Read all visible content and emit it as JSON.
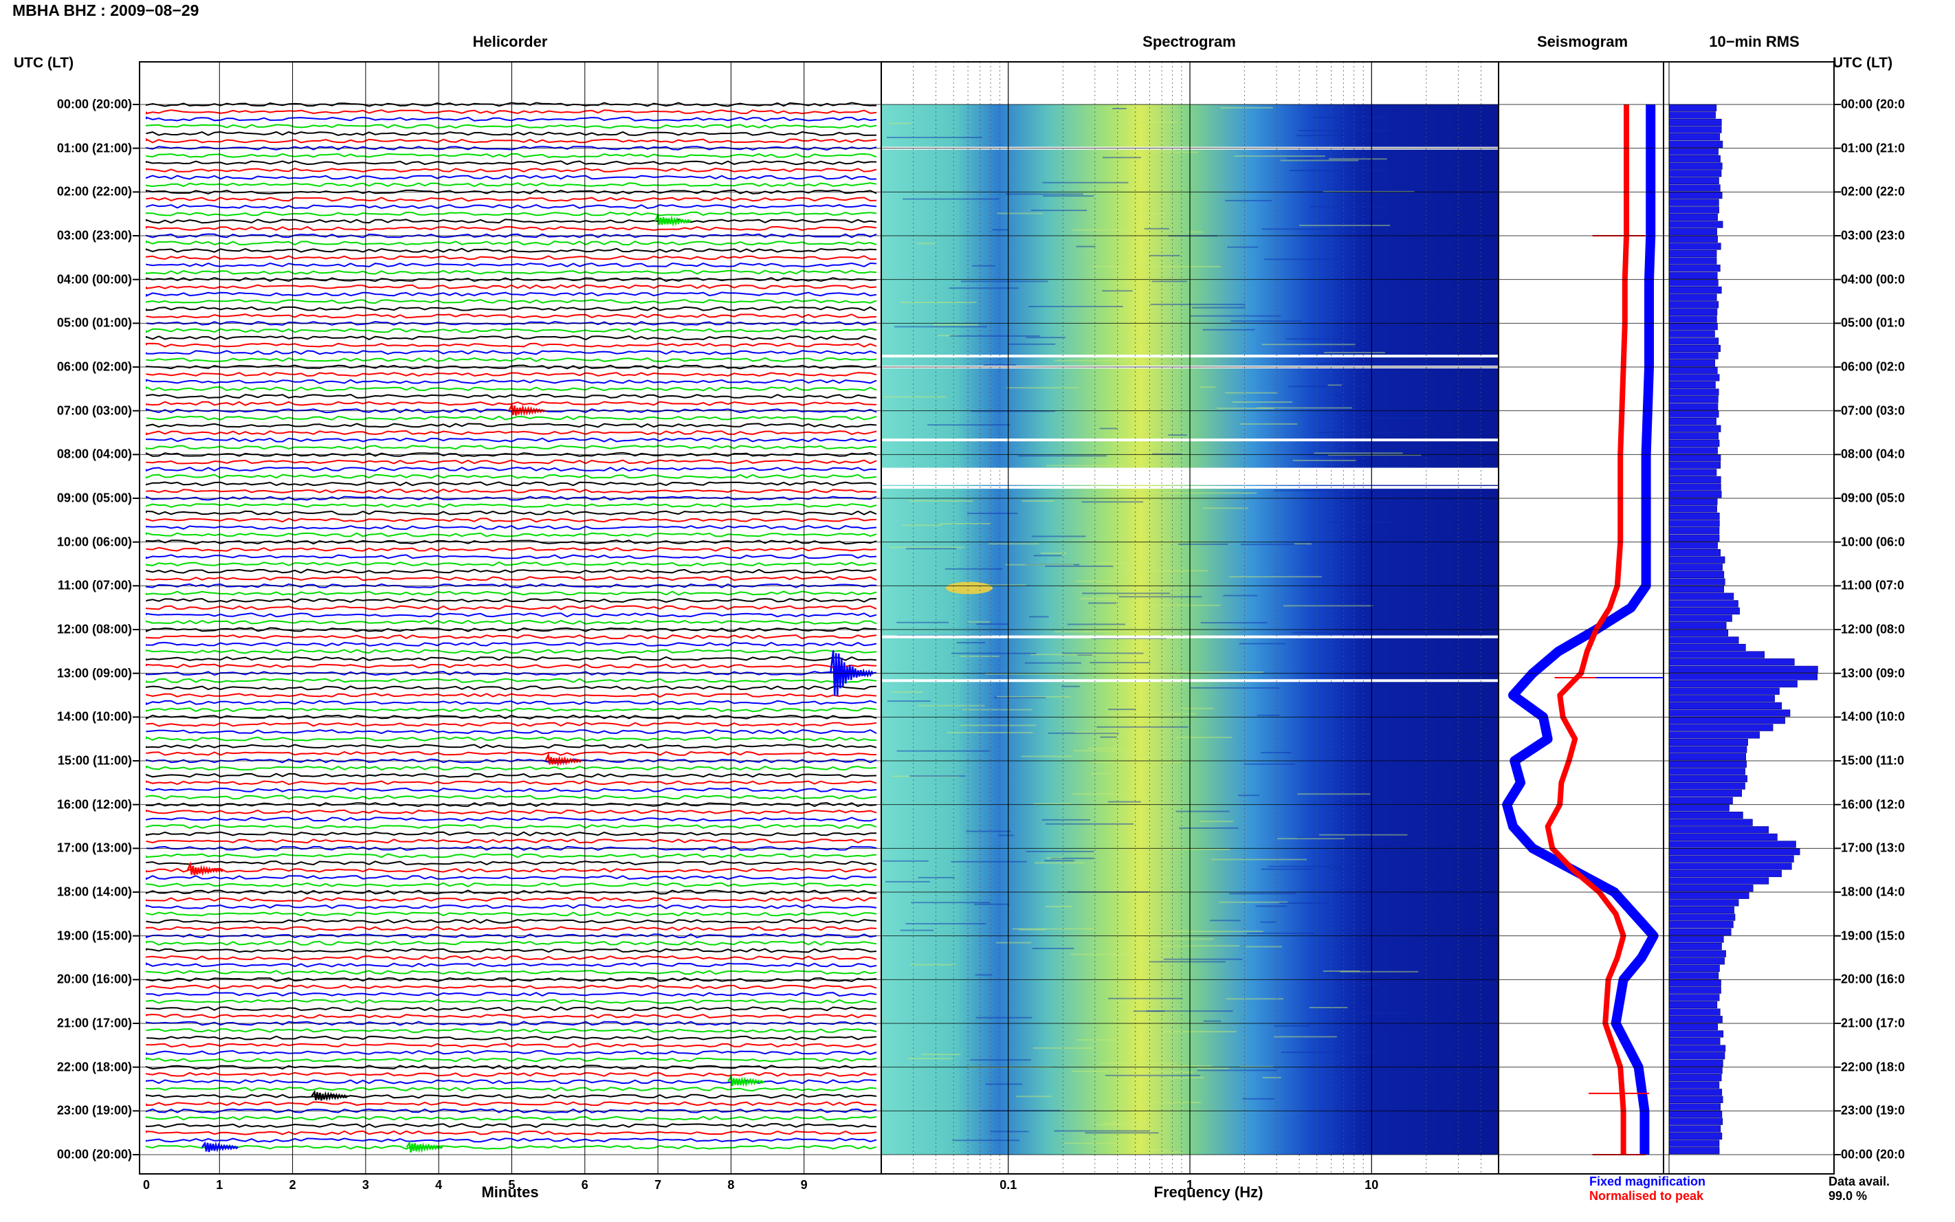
{
  "header": {
    "title": "MBHA BHZ : 2009−08−29"
  },
  "panels": {
    "helicorder": "Helicorder",
    "spectrogram": "Spectrogram",
    "seismogram": "Seismogram",
    "rms": "10−min RMS"
  },
  "axis": {
    "utc_label_left": "UTC (LT)",
    "utc_label_right": "UTC (LT)",
    "time_ticks": [
      "00:00 (20:00)",
      "01:00 (21:00)",
      "02:00 (22:00)",
      "03:00 (23:00)",
      "04:00 (00:00)",
      "05:00 (01:00)",
      "06:00 (02:00)",
      "07:00 (03:00)",
      "08:00 (04:00)",
      "09:00 (05:00)",
      "10:00 (06:00)",
      "11:00 (07:00)",
      "12:00 (08:00)",
      "13:00 (09:00)",
      "14:00 (10:00)",
      "15:00 (11:00)",
      "16:00 (12:00)",
      "17:00 (13:00)",
      "18:00 (14:00)",
      "19:00 (15:00)",
      "20:00 (16:00)",
      "21:00 (17:00)",
      "22:00 (18:00)",
      "23:00 (19:00)",
      "00:00 (20:00)"
    ],
    "right_ticks": [
      "00:00 (20:0",
      "01:00 (21:0",
      "02:00 (22:0",
      "03:00 (23:0",
      "04:00 (00:0",
      "05:00 (01:0",
      "06:00 (02:0",
      "07:00 (03:0",
      "08:00 (04:0",
      "09:00 (05:0",
      "10:00 (06:0",
      "11:00 (07:0",
      "12:00 (08:0",
      "13:00 (09:0",
      "14:00 (10:0",
      "15:00 (11:0",
      "16:00 (12:0",
      "17:00 (13:0",
      "18:00 (14:0",
      "19:00 (15:0",
      "20:00 (16:0",
      "21:00 (17:0",
      "22:00 (18:0",
      "23:00 (19:0",
      "00:00 (20:0"
    ],
    "minute_ticks": [
      "0",
      "1",
      "2",
      "3",
      "4",
      "5",
      "6",
      "7",
      "8",
      "9"
    ],
    "minutes_label": "Minutes",
    "freq_ticks": [
      "0.1",
      "1",
      "10"
    ],
    "freq_label": "Frequency (Hz)"
  },
  "legend": {
    "fixed": "Fixed magnification",
    "normalised": "Normalised to peak",
    "fixed_color": "#0000ff",
    "normalised_color": "#ff0000"
  },
  "availability": {
    "label": "Data avail.",
    "value": "99.0 %"
  },
  "colors": {
    "trace_cycle": [
      "#000000",
      "#ff0000",
      "#0000ff",
      "#00dd00"
    ]
  },
  "chart_data": [
    {
      "type": "line",
      "title": "Helicorder",
      "xlabel": "Minutes",
      "xlim": [
        0,
        10
      ],
      "rows": 144,
      "trace_colors": [
        "black",
        "red",
        "blue",
        "green"
      ],
      "events": [
        {
          "time": "13:00",
          "minute": 9.4,
          "color": "blue",
          "amplitude": "large"
        },
        {
          "time": "02:40",
          "minute": 7.0,
          "color": "green"
        },
        {
          "time": "07:00",
          "minute": 5.0,
          "color": "red"
        },
        {
          "time": "15:00",
          "minute": 5.5,
          "color": "red"
        },
        {
          "time": "17:30",
          "minute": 0.6,
          "color": "red"
        },
        {
          "time": "22:40",
          "minute": 2.3,
          "color": "black"
        },
        {
          "time": "22:20",
          "minute": 8.0,
          "color": "green"
        },
        {
          "time": "23:50",
          "minute": 0.8,
          "color": "blue"
        },
        {
          "time": "23:50",
          "minute": 3.6,
          "color": "green"
        }
      ]
    },
    {
      "type": "heatmap",
      "title": "Spectrogram",
      "xlabel": "Frequency (Hz)",
      "xscale": "log",
      "xlim": [
        0.02,
        50
      ],
      "ylabel": "UTC (LT)",
      "gaps_utc": [
        "01:00",
        "05:45",
        "06:00",
        "07:40",
        "08:20",
        "08:45",
        "12:10",
        "13:10"
      ]
    },
    {
      "type": "line",
      "title": "Seismogram",
      "series": [
        {
          "name": "Fixed magnification",
          "color": "blue",
          "x_time": [
            0,
            1,
            2,
            3,
            4,
            5,
            6,
            7,
            8,
            9,
            10,
            11,
            11.5,
            12,
            12.5,
            13,
            13.5,
            14,
            14.5,
            15,
            15.5,
            16,
            16.5,
            17,
            17.5,
            18,
            18.5,
            19,
            19.5,
            20,
            21,
            22,
            23,
            24
          ],
          "x": [
            0.96,
            0.96,
            0.96,
            0.96,
            0.95,
            0.95,
            0.95,
            0.94,
            0.93,
            0.93,
            0.93,
            0.93,
            0.83,
            0.6,
            0.35,
            0.18,
            0.05,
            0.25,
            0.28,
            0.06,
            0.1,
            0.01,
            0.05,
            0.18,
            0.45,
            0.72,
            0.85,
            0.98,
            0.9,
            0.78,
            0.73,
            0.88,
            0.92,
            0.92
          ]
        },
        {
          "name": "Normalised to peak",
          "color": "red",
          "x_time": [
            0,
            1,
            2,
            3,
            4,
            5,
            6,
            7,
            8,
            9,
            10,
            11,
            11.5,
            12,
            12.5,
            13,
            13.5,
            14,
            14.5,
            15,
            15.5,
            16,
            16.5,
            17,
            17.5,
            18,
            18.5,
            19,
            19.5,
            20,
            21,
            22,
            23,
            24
          ],
          "x": [
            0.8,
            0.8,
            0.8,
            0.8,
            0.79,
            0.79,
            0.78,
            0.77,
            0.76,
            0.76,
            0.76,
            0.74,
            0.69,
            0.6,
            0.54,
            0.5,
            0.36,
            0.38,
            0.46,
            0.42,
            0.37,
            0.36,
            0.28,
            0.31,
            0.45,
            0.62,
            0.73,
            0.78,
            0.74,
            0.68,
            0.66,
            0.76,
            0.78,
            0.78
          ]
        }
      ]
    },
    {
      "type": "bar",
      "title": "10−min RMS",
      "orientation": "horizontal",
      "interval_minutes": 10,
      "profile_hours": [
        0,
        2,
        4,
        6,
        8,
        10,
        11,
        11.5,
        12,
        12.5,
        13,
        13.5,
        14,
        14.5,
        15,
        15.5,
        16,
        16.5,
        17,
        17.5,
        18,
        18.5,
        19,
        20,
        21,
        22,
        23,
        24
      ],
      "profile_values": [
        0.3,
        0.31,
        0.3,
        0.29,
        0.3,
        0.31,
        0.33,
        0.42,
        0.35,
        0.5,
        0.98,
        0.6,
        0.75,
        0.5,
        0.45,
        0.5,
        0.35,
        0.55,
        0.8,
        0.72,
        0.48,
        0.4,
        0.35,
        0.3,
        0.31,
        0.33,
        0.3,
        0.32
      ]
    }
  ]
}
